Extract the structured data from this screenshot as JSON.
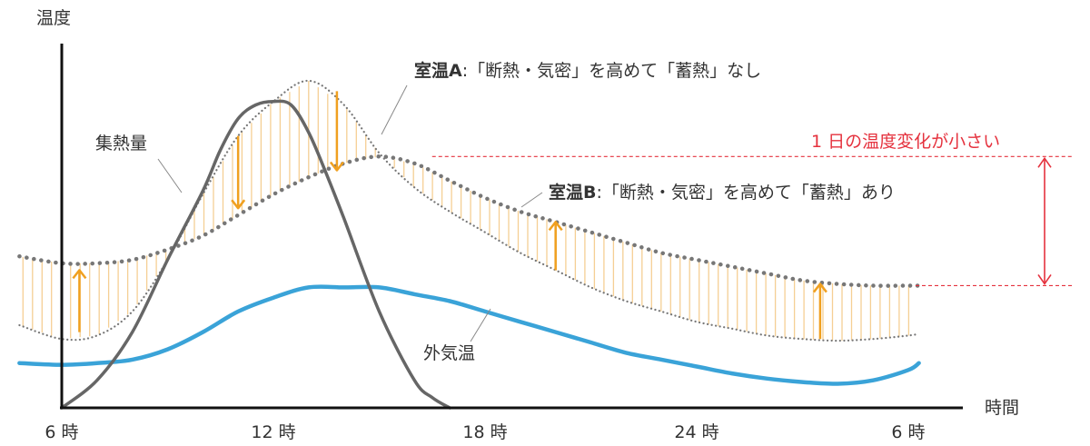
{
  "chart_data": {
    "type": "line",
    "ylabel": "温度",
    "xlabel": "時間",
    "x_ticks": [
      "6 時",
      "12 時",
      "18 時",
      "24 時",
      "6 時"
    ],
    "x_tick_hours": [
      6,
      12,
      18,
      24,
      30
    ],
    "xlim": [
      6,
      30
    ],
    "ylim": [
      0,
      100
    ],
    "y_ticks_shown": false,
    "series": [
      {
        "key": "heat",
        "name": "集熱量",
        "color": "#666666",
        "style": "solid",
        "x": [
          6,
          7,
          8,
          9,
          10,
          10.5,
          11,
          11.5,
          12,
          12.5,
          13,
          13.5,
          14,
          15,
          16,
          16.5,
          17
        ],
        "y": [
          0,
          8,
          22,
          43,
          63,
          75,
          84,
          88,
          89,
          88,
          80,
          68,
          55,
          28,
          8,
          3,
          0
        ]
      },
      {
        "key": "roomA",
        "name_prefix": "室温A",
        "name_suffix": ":「断熱・気密」を高めて「蓄熱」なし",
        "color": "#777777",
        "style": "dotted",
        "x": [
          4.8,
          6,
          7,
          8,
          9,
          10,
          11,
          12,
          13,
          14,
          15,
          16,
          17,
          18,
          19,
          20,
          21,
          22,
          23,
          24,
          25,
          26,
          27,
          28,
          29,
          30,
          30.3
        ],
        "y": [
          24,
          20,
          21,
          28,
          43,
          62,
          79,
          89,
          95,
          88,
          74,
          64,
          57,
          51,
          45,
          40,
          35,
          31,
          28,
          25,
          23,
          21,
          20,
          19.5,
          20,
          21,
          21.5
        ]
      },
      {
        "key": "roomB",
        "name_prefix": "室温B",
        "name_suffix": ":「断熱・気密」を高めて「蓄熱」あり",
        "color": "#777777",
        "style": "dashed",
        "x": [
          4.8,
          6,
          7,
          8,
          9,
          10,
          11,
          12,
          13,
          14,
          15,
          16,
          17,
          18,
          19,
          20,
          21,
          22,
          23,
          24,
          25,
          26,
          27,
          28,
          29,
          30,
          30.3
        ],
        "y": [
          44,
          42,
          42,
          43,
          46,
          50,
          56,
          62,
          67,
          71,
          73,
          71,
          66,
          61,
          57,
          54,
          51,
          48,
          45,
          43,
          41,
          39,
          37,
          36,
          35.5,
          35.5,
          35.5
        ]
      },
      {
        "key": "outdoor",
        "name": "外気温",
        "color": "#3aa3d8",
        "style": "solid",
        "x": [
          4.8,
          6,
          7,
          8,
          9,
          10,
          11,
          12,
          13,
          14,
          15,
          16,
          17,
          18,
          19,
          20,
          21,
          22,
          23,
          24,
          25,
          26,
          27,
          28,
          29,
          30,
          30.3
        ],
        "y": [
          13,
          12.5,
          13,
          14,
          17,
          22,
          28,
          32,
          35,
          35,
          35,
          33,
          31,
          28,
          25,
          22,
          19,
          16,
          14,
          12,
          10,
          8.5,
          7.5,
          7,
          8,
          11,
          13
        ]
      }
    ],
    "arrows": [
      {
        "x": 6.5,
        "from": 22,
        "to": 40,
        "dir": "up"
      },
      {
        "x": 11,
        "from": 79,
        "to": 58,
        "dir": "down"
      },
      {
        "x": 13.8,
        "from": 92,
        "to": 69,
        "dir": "down"
      },
      {
        "x": 20,
        "from": 40,
        "to": 54,
        "dir": "up"
      },
      {
        "x": 27.5,
        "from": 20,
        "to": 36,
        "dir": "up"
      }
    ],
    "annotation": {
      "text": "1 日の温度変化が小さい",
      "color": "#e5323e",
      "top_y": 73,
      "bottom_y": 35.5
    },
    "hatch_color": "#f5cf94",
    "arrow_color": "#f0a020"
  }
}
